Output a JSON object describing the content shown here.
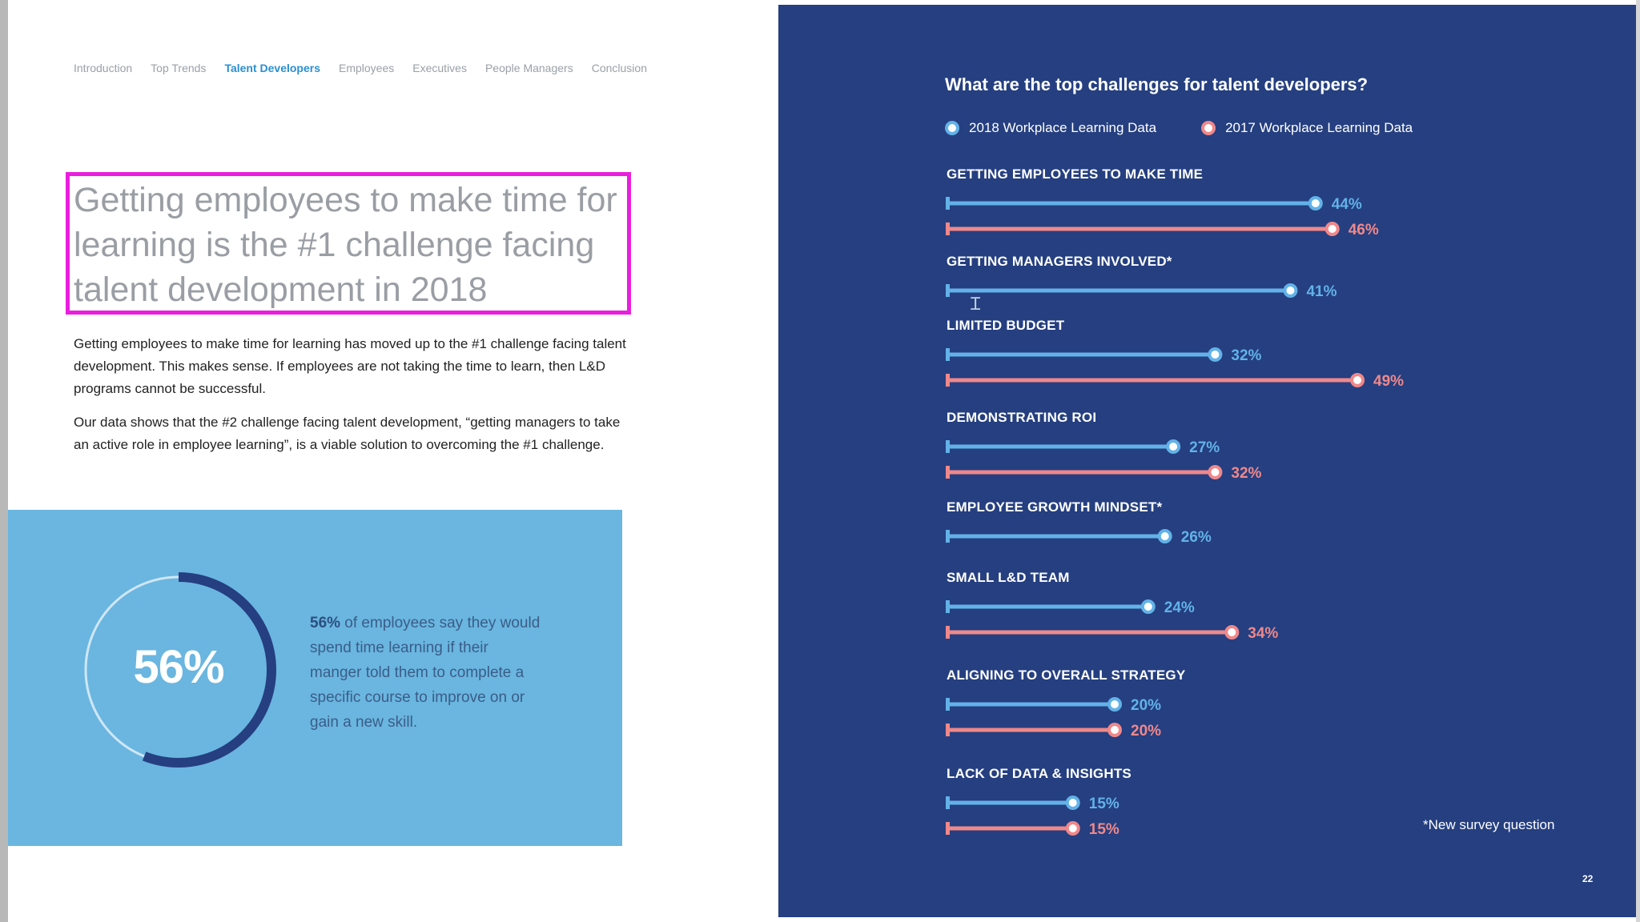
{
  "nav": {
    "tabs": [
      {
        "label": "Introduction",
        "active": false
      },
      {
        "label": "Top Trends",
        "active": false
      },
      {
        "label": "Talent Developers",
        "active": true
      },
      {
        "label": "Employees",
        "active": false
      },
      {
        "label": "Executives",
        "active": false
      },
      {
        "label": "People Managers",
        "active": false
      },
      {
        "label": "Conclusion",
        "active": false
      }
    ]
  },
  "headline": "Getting employees to make time for learning is the #1 challenge facing talent development in 2018",
  "paragraphs": [
    "Getting employees to make time for learning has moved up to the #1 challenge facing talent development. This makes sense. If employees are not taking the time to learn, then L&D programs cannot be successful.",
    "Our data shows that the #2 challenge facing talent development, “getting managers to take an active role in employee learning”, is a viable solution to overcoming the #1 challenge."
  ],
  "stat": {
    "value_label": "56%",
    "value": 56,
    "text_bold": "56%",
    "text_rest": " of employees say they would spend time learning if their manger told them to complete a specific course to improve on or gain a new skill."
  },
  "colors": {
    "page_right_bg": "#253f80",
    "series_2018": "#62b2e8",
    "series_2017": "#f0888a",
    "stat_panel_bg": "#6ab6e0",
    "donut_dark": "#253f80",
    "highlight_border": "#e91ede"
  },
  "chart_data": {
    "type": "bar",
    "orientation": "horizontal",
    "title": "What are the top challenges for talent developers?",
    "legend_placement": "top-left",
    "series": [
      {
        "name": "2018 Workplace Learning Data",
        "values": [
          44,
          41,
          32,
          27,
          26,
          24,
          20,
          15
        ]
      },
      {
        "name": "2017 Workplace Learning Data",
        "values": [
          46,
          null,
          49,
          32,
          null,
          34,
          20,
          15
        ]
      }
    ],
    "categories": [
      "GETTING EMPLOYEES TO MAKE TIME",
      "GETTING MANAGERS INVOLVED*",
      "LIMITED BUDGET",
      "DEMONSTRATING ROI",
      "EMPLOYEE GROWTH MINDSET*",
      "SMALL L&D TEAM",
      "ALIGNING TO OVERALL STRATEGY",
      "LACK OF DATA & INSIGHTS"
    ],
    "value_suffix": "%",
    "xlim": [
      0,
      55
    ],
    "grid": false
  },
  "footnote": "*New survey question",
  "page_number": "22"
}
